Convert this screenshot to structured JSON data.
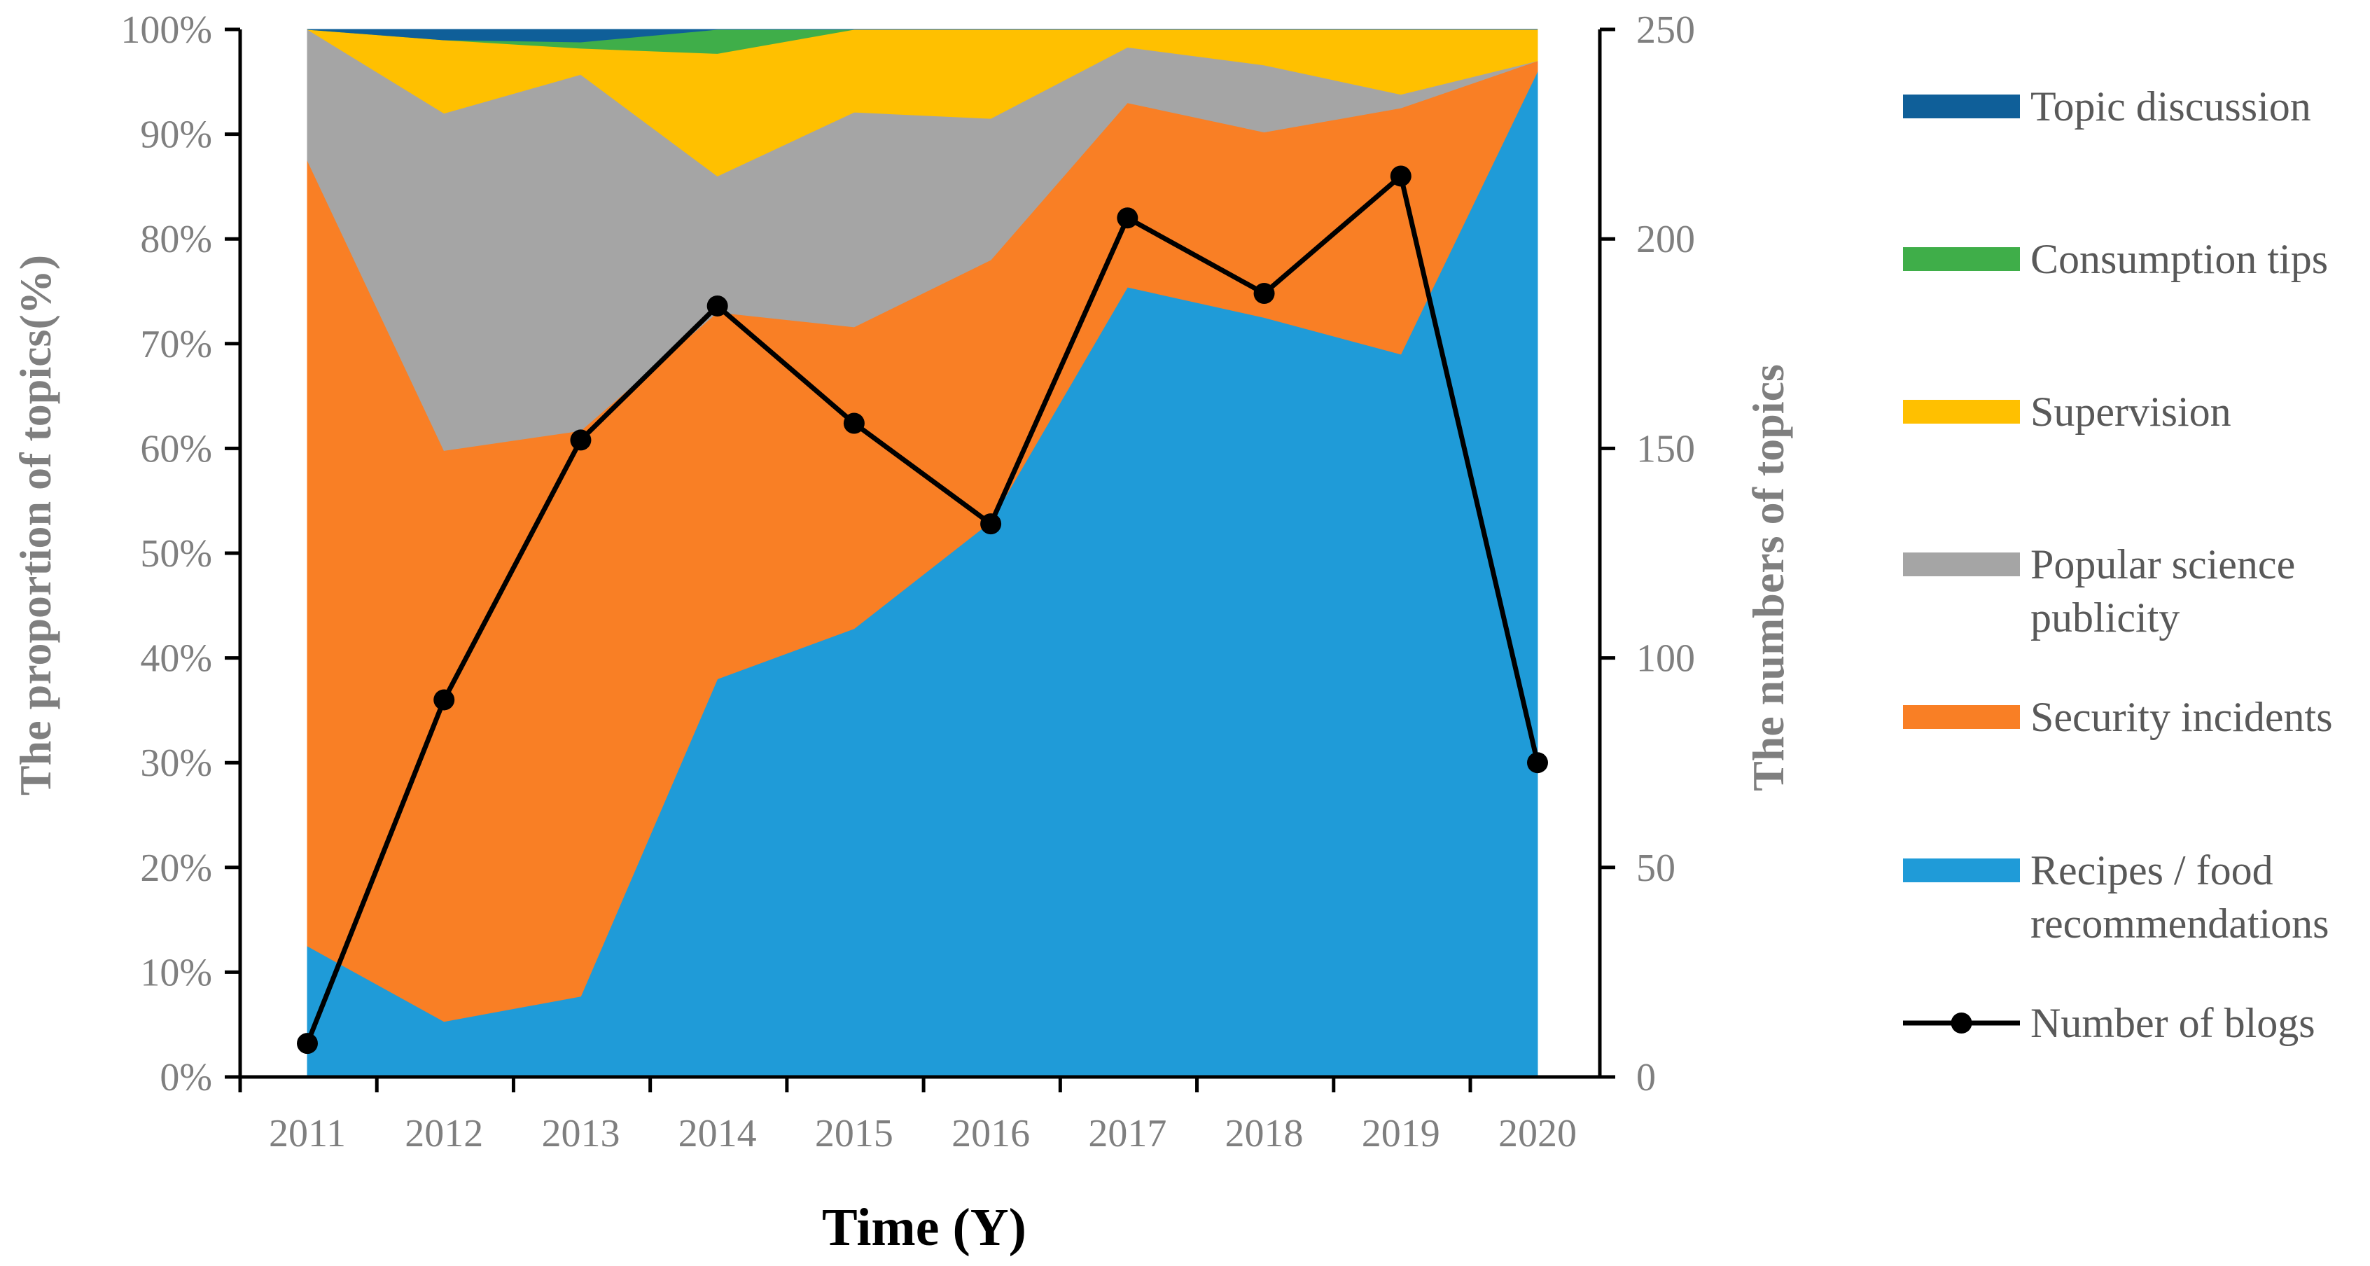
{
  "chart_data": {
    "type": "area",
    "stacked_percent": true,
    "title": "",
    "xlabel": "Time (Y)",
    "ylabel_left": "The proportion of topics(%)",
    "ylabel_right": "The numbers of topics",
    "x": [
      "2011",
      "2012",
      "2013",
      "2014",
      "2015",
      "2016",
      "2017",
      "2018",
      "2019",
      "2020"
    ],
    "y_left_ticks": [
      "0%",
      "10%",
      "20%",
      "30%",
      "40%",
      "50%",
      "60%",
      "70%",
      "80%",
      "90%",
      "100%"
    ],
    "y_left_range": [
      0,
      100
    ],
    "y_right_ticks": [
      "0",
      "50",
      "100",
      "150",
      "200",
      "250"
    ],
    "y_right_range": [
      0,
      250
    ],
    "series": [
      {
        "name": "Recipes / food recommendations",
        "color": "#1f9bd8",
        "values": [
          12.5,
          5.3,
          7.7,
          38.0,
          42.8,
          53.0,
          75.4,
          72.5,
          69.0,
          96.0
        ]
      },
      {
        "name": "Security incidents",
        "color": "#f97f25",
        "values": [
          75.0,
          54.5,
          54.0,
          35.0,
          28.8,
          25.0,
          17.6,
          17.7,
          23.5,
          1.0
        ]
      },
      {
        "name": "Popular science publicity",
        "color": "#a5a5a5",
        "values": [
          12.5,
          32.2,
          34.0,
          13.0,
          20.5,
          13.5,
          5.3,
          6.4,
          1.3,
          0.0
        ]
      },
      {
        "name": "Supervision",
        "color": "#ffc000",
        "values": [
          0.0,
          7.0,
          2.5,
          11.7,
          7.9,
          8.5,
          1.7,
          3.4,
          6.2,
          3.0
        ]
      },
      {
        "name": "Consumption tips",
        "color": "#3fae49",
        "values": [
          0.0,
          0.0,
          0.6,
          2.3,
          0.0,
          0.0,
          0.0,
          0.0,
          0.0,
          0.0
        ]
      },
      {
        "name": "Topic discussion",
        "color": "#0f5f99",
        "values": [
          0.0,
          1.0,
          1.2,
          0.0,
          0.0,
          0.0,
          0.0,
          0.0,
          0.0,
          0.0
        ]
      }
    ],
    "line_series": {
      "name": "Number of blogs",
      "axis": "right",
      "color": "#000000",
      "values": [
        8,
        90,
        152,
        184,
        156,
        132,
        205,
        187,
        215,
        75
      ]
    },
    "legend_order": [
      "Topic discussion",
      "Consumption tips",
      "Supervision",
      "Popular science publicity",
      "Security incidents",
      "Recipes / food recommendations",
      "Number of blogs"
    ],
    "legend_labels": [
      {
        "key": "Topic discussion",
        "lines": [
          "Topic discussion"
        ]
      },
      {
        "key": "Consumption tips",
        "lines": [
          "Consumption tips"
        ]
      },
      {
        "key": "Supervision",
        "lines": [
          "Supervision"
        ]
      },
      {
        "key": "Popular science publicity",
        "lines": [
          "Popular science",
          "publicity"
        ]
      },
      {
        "key": "Security incidents",
        "lines": [
          "Security incidents"
        ]
      },
      {
        "key": "Recipes / food recommendations",
        "lines": [
          "Recipes / food",
          "recommendations"
        ]
      },
      {
        "key": "Number of blogs",
        "lines": [
          "Number of blogs"
        ]
      }
    ],
    "legend_position": "right",
    "grid": false
  }
}
